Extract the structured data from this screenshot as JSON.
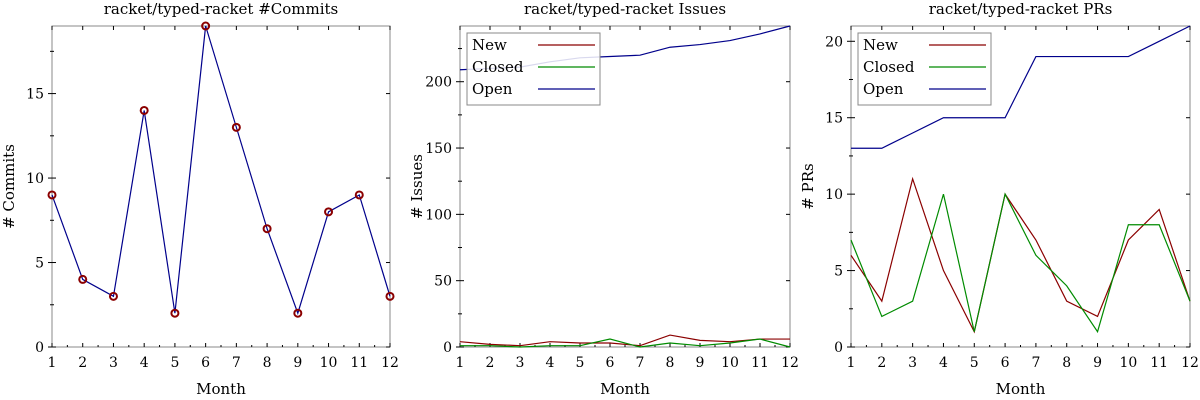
{
  "chart_data": [
    {
      "type": "line",
      "title": "racket/typed-racket #Commits",
      "xlabel": "Month",
      "ylabel": "# Commits",
      "categories": [
        "1",
        "2",
        "3",
        "4",
        "5",
        "6",
        "7",
        "8",
        "9",
        "10",
        "11",
        "12"
      ],
      "xlim": [
        1,
        12
      ],
      "ylim": [
        0,
        19
      ],
      "yticks": [
        0,
        5,
        10,
        15
      ],
      "markers": true,
      "grid": false,
      "series": [
        {
          "values": [
            9,
            4,
            3,
            14,
            2,
            19,
            13,
            7,
            2,
            8,
            9,
            3
          ],
          "color": "#00008b",
          "marker_color": "#8b0000"
        }
      ]
    },
    {
      "type": "line",
      "title": "racket/typed-racket Issues",
      "xlabel": "Month",
      "ylabel": "# Issues",
      "categories": [
        "1",
        "2",
        "3",
        "4",
        "5",
        "6",
        "7",
        "8",
        "9",
        "10",
        "11",
        "12"
      ],
      "xlim": [
        1,
        12
      ],
      "ylim": [
        0,
        242
      ],
      "yticks": [
        0,
        50,
        100,
        150,
        200
      ],
      "grid": false,
      "legend": "top-left",
      "series": [
        {
          "name": "New",
          "values": [
            4,
            2,
            1,
            4,
            3,
            3,
            1,
            9,
            5,
            4,
            6,
            6
          ],
          "color": "#8b0000"
        },
        {
          "name": "Closed",
          "values": [
            1,
            1,
            0,
            1,
            1,
            6,
            0,
            3,
            1,
            3,
            6,
            0
          ],
          "color": "#008b00"
        },
        {
          "name": "Open",
          "values": [
            209,
            210,
            211,
            215,
            218,
            219,
            220,
            226,
            228,
            231,
            236,
            242
          ],
          "color": "#00008b"
        }
      ]
    },
    {
      "type": "line",
      "title": "racket/typed-racket PRs",
      "xlabel": "Month",
      "ylabel": "# PRs",
      "categories": [
        "1",
        "2",
        "3",
        "4",
        "5",
        "6",
        "7",
        "8",
        "9",
        "10",
        "11",
        "12"
      ],
      "xlim": [
        1,
        12
      ],
      "ylim": [
        0,
        21
      ],
      "yticks": [
        0,
        5,
        10,
        15,
        20
      ],
      "grid": false,
      "legend": "top-left",
      "series": [
        {
          "name": "New",
          "values": [
            6,
            3,
            11,
            5,
            1,
            10,
            7,
            3,
            2,
            7,
            9,
            3
          ],
          "color": "#8b0000"
        },
        {
          "name": "Closed",
          "values": [
            7,
            2,
            3,
            10,
            1,
            10,
            6,
            4,
            1,
            8,
            8,
            3
          ],
          "color": "#008b00"
        },
        {
          "name": "Open",
          "values": [
            13,
            13,
            14,
            15,
            15,
            15,
            19,
            19,
            19,
            19,
            20,
            21
          ],
          "color": "#00008b"
        }
      ]
    }
  ]
}
